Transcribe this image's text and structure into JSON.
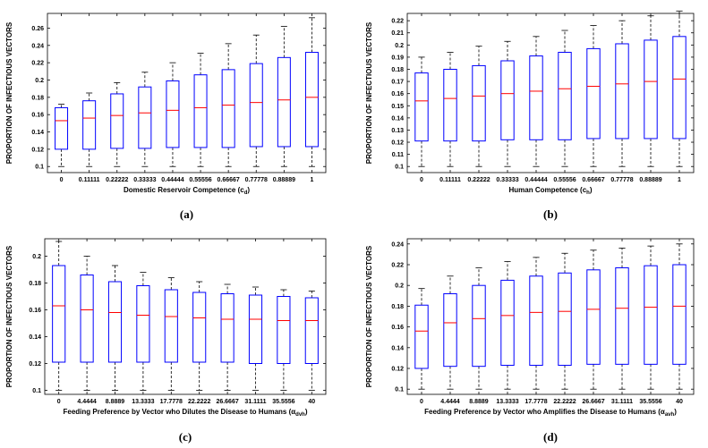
{
  "chart_data": [
    {
      "type": "box",
      "panel_label": "(a)",
      "xlabel": "Domestic Reservoir Competence (c",
      "xlabel_sub": "d",
      "xlabel_end": ")",
      "ylabel": "PROPORTION OF INFECTIOUS VECTORS",
      "categories": [
        "0",
        "0.11111",
        "0.22222",
        "0.33333",
        "0.44444",
        "0.55556",
        "0.66667",
        "0.77778",
        "0.88889",
        "1"
      ],
      "yticks": [
        0.1,
        0.12,
        0.14,
        0.16,
        0.18,
        0.2,
        0.22,
        0.24,
        0.26
      ],
      "ytick_labels": [
        "0.1",
        "0.12",
        "0.14",
        "0.16",
        "0.18",
        "0.2",
        "0.22",
        "0.24",
        "0.26"
      ],
      "ylim": [
        0.093,
        0.277
      ],
      "boxes": [
        {
          "min": 0.1,
          "q1": 0.12,
          "median": 0.153,
          "q3": 0.168,
          "max": 0.172
        },
        {
          "min": 0.1,
          "q1": 0.12,
          "median": 0.156,
          "q3": 0.176,
          "max": 0.185
        },
        {
          "min": 0.1,
          "q1": 0.121,
          "median": 0.159,
          "q3": 0.184,
          "max": 0.197
        },
        {
          "min": 0.1,
          "q1": 0.121,
          "median": 0.162,
          "q3": 0.192,
          "max": 0.209
        },
        {
          "min": 0.1,
          "q1": 0.122,
          "median": 0.165,
          "q3": 0.199,
          "max": 0.22
        },
        {
          "min": 0.1,
          "q1": 0.122,
          "median": 0.168,
          "q3": 0.206,
          "max": 0.231
        },
        {
          "min": 0.1,
          "q1": 0.122,
          "median": 0.171,
          "q3": 0.212,
          "max": 0.242
        },
        {
          "min": 0.1,
          "q1": 0.123,
          "median": 0.174,
          "q3": 0.219,
          "max": 0.252
        },
        {
          "min": 0.1,
          "q1": 0.123,
          "median": 0.177,
          "q3": 0.226,
          "max": 0.262
        },
        {
          "min": 0.1,
          "q1": 0.123,
          "median": 0.18,
          "q3": 0.232,
          "max": 0.272
        }
      ]
    },
    {
      "type": "box",
      "panel_label": "(b)",
      "xlabel": "Human Competence (c",
      "xlabel_sub": "h",
      "xlabel_end": ")",
      "ylabel": "PROPORTION OF INFECTIOUS VECTORS",
      "categories": [
        "0",
        "0.11111",
        "0.22222",
        "0.33333",
        "0.44444",
        "0.55556",
        "0.66667",
        "0.77778",
        "0.88889",
        "1"
      ],
      "yticks": [
        0.1,
        0.11,
        0.12,
        0.13,
        0.14,
        0.15,
        0.16,
        0.17,
        0.18,
        0.19,
        0.2,
        0.21,
        0.22
      ],
      "ytick_labels": [
        "0.1",
        "0.11",
        "0.12",
        "0.13",
        "0.14",
        "0.15",
        "0.16",
        "0.17",
        "0.18",
        "0.19",
        "0.2",
        "0.21",
        "0.22"
      ],
      "ylim": [
        0.095,
        0.226
      ],
      "boxes": [
        {
          "min": 0.1,
          "q1": 0.121,
          "median": 0.154,
          "q3": 0.177,
          "max": 0.19
        },
        {
          "min": 0.1,
          "q1": 0.121,
          "median": 0.156,
          "q3": 0.18,
          "max": 0.194
        },
        {
          "min": 0.1,
          "q1": 0.121,
          "median": 0.158,
          "q3": 0.183,
          "max": 0.199
        },
        {
          "min": 0.1,
          "q1": 0.122,
          "median": 0.16,
          "q3": 0.187,
          "max": 0.203
        },
        {
          "min": 0.1,
          "q1": 0.122,
          "median": 0.162,
          "q3": 0.191,
          "max": 0.207
        },
        {
          "min": 0.1,
          "q1": 0.122,
          "median": 0.164,
          "q3": 0.194,
          "max": 0.212
        },
        {
          "min": 0.1,
          "q1": 0.123,
          "median": 0.166,
          "q3": 0.197,
          "max": 0.216
        },
        {
          "min": 0.1,
          "q1": 0.123,
          "median": 0.168,
          "q3": 0.201,
          "max": 0.22
        },
        {
          "min": 0.1,
          "q1": 0.123,
          "median": 0.17,
          "q3": 0.204,
          "max": 0.224
        },
        {
          "min": 0.1,
          "q1": 0.123,
          "median": 0.172,
          "q3": 0.207,
          "max": 0.228
        }
      ]
    },
    {
      "type": "box",
      "panel_label": "(c)",
      "xlabel": "Feeding Preference by Vector who Dilutes the Disease to Humans (α",
      "xlabel_sub": "dvh",
      "xlabel_end": ")",
      "ylabel": "PROPORTION OF INFECTIOUS VECTORS",
      "categories": [
        "0",
        "4.4444",
        "8.8889",
        "13.3333",
        "17.7778",
        "22.2222",
        "26.6667",
        "31.1111",
        "35.5556",
        "40"
      ],
      "yticks": [
        0.1,
        0.12,
        0.14,
        0.16,
        0.18,
        0.2
      ],
      "ytick_labels": [
        "0.1",
        "0.12",
        "0.14",
        "0.16",
        "0.18",
        "0.2"
      ],
      "ylim": [
        0.097,
        0.213
      ],
      "boxes": [
        {
          "min": 0.1,
          "q1": 0.121,
          "median": 0.163,
          "q3": 0.193,
          "max": 0.211
        },
        {
          "min": 0.1,
          "q1": 0.121,
          "median": 0.16,
          "q3": 0.186,
          "max": 0.2
        },
        {
          "min": 0.1,
          "q1": 0.121,
          "median": 0.158,
          "q3": 0.181,
          "max": 0.193
        },
        {
          "min": 0.1,
          "q1": 0.121,
          "median": 0.156,
          "q3": 0.178,
          "max": 0.188
        },
        {
          "min": 0.1,
          "q1": 0.121,
          "median": 0.155,
          "q3": 0.175,
          "max": 0.184
        },
        {
          "min": 0.1,
          "q1": 0.121,
          "median": 0.154,
          "q3": 0.173,
          "max": 0.181
        },
        {
          "min": 0.1,
          "q1": 0.121,
          "median": 0.153,
          "q3": 0.172,
          "max": 0.179
        },
        {
          "min": 0.1,
          "q1": 0.12,
          "median": 0.153,
          "q3": 0.171,
          "max": 0.177
        },
        {
          "min": 0.1,
          "q1": 0.12,
          "median": 0.152,
          "q3": 0.17,
          "max": 0.175
        },
        {
          "min": 0.1,
          "q1": 0.12,
          "median": 0.152,
          "q3": 0.169,
          "max": 0.174
        }
      ]
    },
    {
      "type": "box",
      "panel_label": "(d)",
      "xlabel": "Feeding Preference by Vector who Amplifies the Disease to Humans (α",
      "xlabel_sub": "avh",
      "xlabel_end": ")",
      "ylabel": "PROPORTION OF INFECTIOUS VECTORS",
      "categories": [
        "0",
        "4.4444",
        "8.8889",
        "13.3333",
        "17.7778",
        "22.2222",
        "26.6667",
        "31.1111",
        "35.5556",
        "40"
      ],
      "yticks": [
        0.1,
        0.12,
        0.14,
        0.16,
        0.18,
        0.2,
        0.22,
        0.24
      ],
      "ytick_labels": [
        "0.1",
        "0.12",
        "0.14",
        "0.16",
        "0.18",
        "0.2",
        "0.22",
        "0.24"
      ],
      "ylim": [
        0.095,
        0.245
      ],
      "boxes": [
        {
          "min": 0.1,
          "q1": 0.12,
          "median": 0.156,
          "q3": 0.181,
          "max": 0.197
        },
        {
          "min": 0.1,
          "q1": 0.122,
          "median": 0.164,
          "q3": 0.192,
          "max": 0.209
        },
        {
          "min": 0.1,
          "q1": 0.122,
          "median": 0.168,
          "q3": 0.2,
          "max": 0.217
        },
        {
          "min": 0.1,
          "q1": 0.123,
          "median": 0.171,
          "q3": 0.205,
          "max": 0.223
        },
        {
          "min": 0.1,
          "q1": 0.123,
          "median": 0.174,
          "q3": 0.209,
          "max": 0.227
        },
        {
          "min": 0.1,
          "q1": 0.123,
          "median": 0.175,
          "q3": 0.212,
          "max": 0.231
        },
        {
          "min": 0.1,
          "q1": 0.124,
          "median": 0.177,
          "q3": 0.215,
          "max": 0.234
        },
        {
          "min": 0.1,
          "q1": 0.124,
          "median": 0.178,
          "q3": 0.217,
          "max": 0.236
        },
        {
          "min": 0.1,
          "q1": 0.124,
          "median": 0.179,
          "q3": 0.219,
          "max": 0.238
        },
        {
          "min": 0.1,
          "q1": 0.124,
          "median": 0.18,
          "q3": 0.22,
          "max": 0.24
        }
      ]
    }
  ],
  "colors": {
    "box": "#0000ff",
    "median": "#ff0000",
    "whisker": "#000000",
    "axis": "#000000"
  }
}
